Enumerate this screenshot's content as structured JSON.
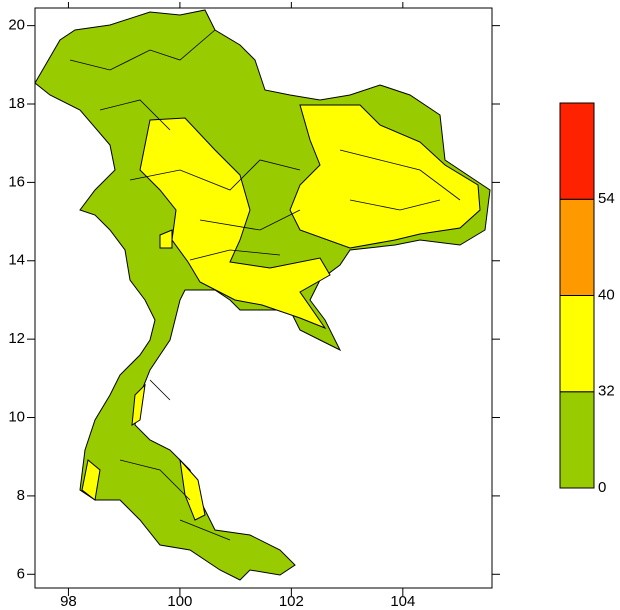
{
  "map": {
    "xlim": [
      97.4,
      105.6
    ],
    "ylim": [
      5.65,
      20.45
    ],
    "xticks": [
      98,
      100,
      102,
      104
    ],
    "yticks": [
      6,
      8,
      10,
      12,
      14,
      16,
      18,
      20
    ],
    "colorbar": {
      "levels": [
        0,
        32,
        40,
        54
      ],
      "colors": [
        "#99cc00",
        "#ffff00",
        "#ff9900",
        "#ff2200"
      ]
    }
  }
}
